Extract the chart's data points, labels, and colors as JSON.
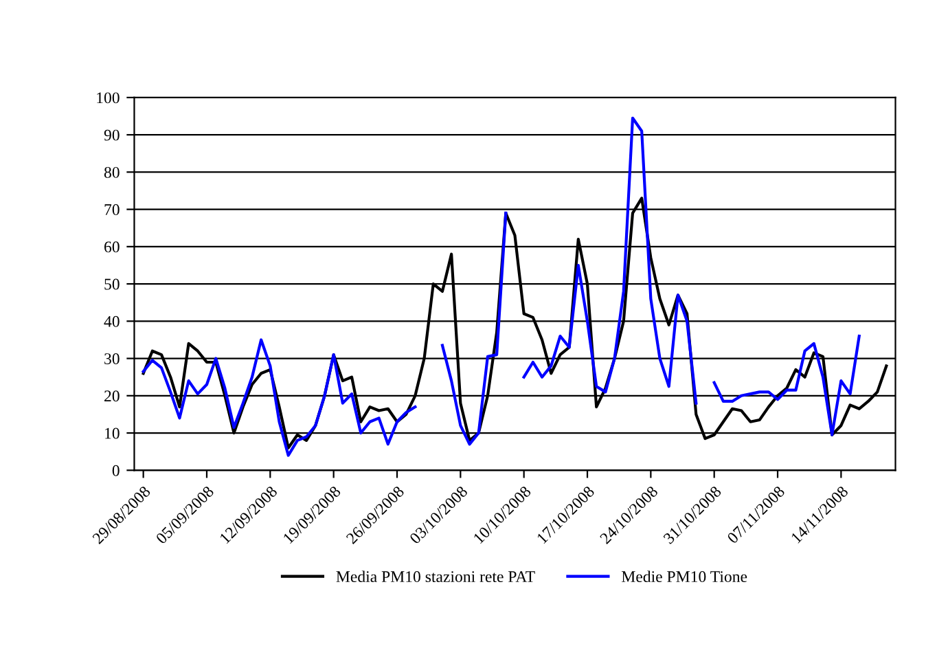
{
  "chart_data": {
    "type": "line",
    "x": [
      "2008-08-29",
      "2008-08-30",
      "2008-08-31",
      "2008-09-01",
      "2008-09-02",
      "2008-09-03",
      "2008-09-04",
      "2008-09-05",
      "2008-09-06",
      "2008-09-07",
      "2008-09-08",
      "2008-09-09",
      "2008-09-10",
      "2008-09-11",
      "2008-09-12",
      "2008-09-13",
      "2008-09-14",
      "2008-09-15",
      "2008-09-16",
      "2008-09-17",
      "2008-09-18",
      "2008-09-19",
      "2008-09-20",
      "2008-09-21",
      "2008-09-22",
      "2008-09-23",
      "2008-09-24",
      "2008-09-25",
      "2008-09-26",
      "2008-09-27",
      "2008-09-28",
      "2008-09-29",
      "2008-09-30",
      "2008-10-01",
      "2008-10-02",
      "2008-10-03",
      "2008-10-04",
      "2008-10-05",
      "2008-10-06",
      "2008-10-07",
      "2008-10-08",
      "2008-10-09",
      "2008-10-10",
      "2008-10-11",
      "2008-10-12",
      "2008-10-13",
      "2008-10-14",
      "2008-10-15",
      "2008-10-16",
      "2008-10-17",
      "2008-10-18",
      "2008-10-19",
      "2008-10-20",
      "2008-10-21",
      "2008-10-22",
      "2008-10-23",
      "2008-10-24",
      "2008-10-25",
      "2008-10-26",
      "2008-10-27",
      "2008-10-28",
      "2008-10-29",
      "2008-10-30",
      "2008-10-31",
      "2008-11-01",
      "2008-11-02",
      "2008-11-03",
      "2008-11-04",
      "2008-11-05",
      "2008-11-06",
      "2008-11-07",
      "2008-11-08",
      "2008-11-09",
      "2008-11-10",
      "2008-11-11",
      "2008-11-12",
      "2008-11-13",
      "2008-11-14",
      "2008-11-15",
      "2008-11-16",
      "2008-11-17",
      "2008-11-18",
      "2008-11-19"
    ],
    "xlim": [
      "2008-08-28",
      "2008-11-20"
    ],
    "xticks": [
      {
        "value": "2008-08-29",
        "label": "29/08/2008"
      },
      {
        "value": "2008-09-05",
        "label": "05/09/2008"
      },
      {
        "value": "2008-09-12",
        "label": "12/09/2008"
      },
      {
        "value": "2008-09-19",
        "label": "19/09/2008"
      },
      {
        "value": "2008-09-26",
        "label": "26/09/2008"
      },
      {
        "value": "2008-10-03",
        "label": "03/10/2008"
      },
      {
        "value": "2008-10-10",
        "label": "10/10/2008"
      },
      {
        "value": "2008-10-17",
        "label": "17/10/2008"
      },
      {
        "value": "2008-10-24",
        "label": "24/10/2008"
      },
      {
        "value": "2008-10-31",
        "label": "31/10/2008"
      },
      {
        "value": "2008-11-07",
        "label": "07/11/2008"
      },
      {
        "value": "2008-11-14",
        "label": "14/11/2008"
      }
    ],
    "ylim": [
      0,
      100
    ],
    "yticks": [
      0,
      10,
      20,
      30,
      40,
      50,
      60,
      70,
      80,
      90,
      100
    ],
    "grid": "y",
    "legend": "bottom",
    "marker": "none",
    "line_style": "solid",
    "series": [
      {
        "name": "Media PM10 stazioni rete PAT",
        "color": "#000000",
        "values": [
          26,
          32,
          31,
          25,
          17,
          34,
          32,
          29,
          29,
          20,
          10,
          17,
          23,
          26,
          27,
          17,
          6,
          9.5,
          8,
          12,
          20,
          31,
          24,
          25,
          13,
          17,
          16,
          16.5,
          13,
          15,
          20,
          30,
          50,
          48,
          58,
          18,
          8,
          10,
          20,
          37,
          69,
          63,
          42,
          41,
          35,
          26,
          31,
          33,
          62,
          50,
          17,
          22,
          30,
          40,
          69,
          73,
          57,
          46,
          39,
          47,
          42,
          15,
          8.5,
          9.5,
          13,
          16.5,
          16,
          13,
          13.5,
          17,
          20,
          22,
          27,
          25,
          31.5,
          30.5,
          9.5,
          12,
          17.5,
          16.5,
          18.5,
          21,
          28
        ]
      },
      {
        "name": "Medie PM10 Tione",
        "color": "#0000ff",
        "values": [
          26.5,
          29.5,
          27.5,
          21,
          14,
          24,
          20.5,
          23,
          30,
          22,
          11.5,
          18,
          25,
          35,
          28,
          13,
          4,
          8,
          9,
          12,
          20,
          31,
          18,
          20.5,
          10,
          13,
          14,
          7,
          13,
          15.5,
          17,
          null,
          null,
          33.5,
          24,
          12,
          7,
          10,
          30.5,
          31,
          69,
          null,
          25,
          29,
          25,
          28,
          36,
          33,
          55,
          40,
          22.5,
          21,
          30,
          48,
          94.5,
          91,
          46,
          30,
          22.5,
          47,
          40,
          18,
          null,
          23.5,
          18.5,
          18.5,
          20,
          20.5,
          21,
          21,
          19,
          21.5,
          21.5,
          32,
          34,
          25,
          9.5,
          24,
          20.5,
          36,
          null,
          null,
          null
        ]
      }
    ]
  }
}
